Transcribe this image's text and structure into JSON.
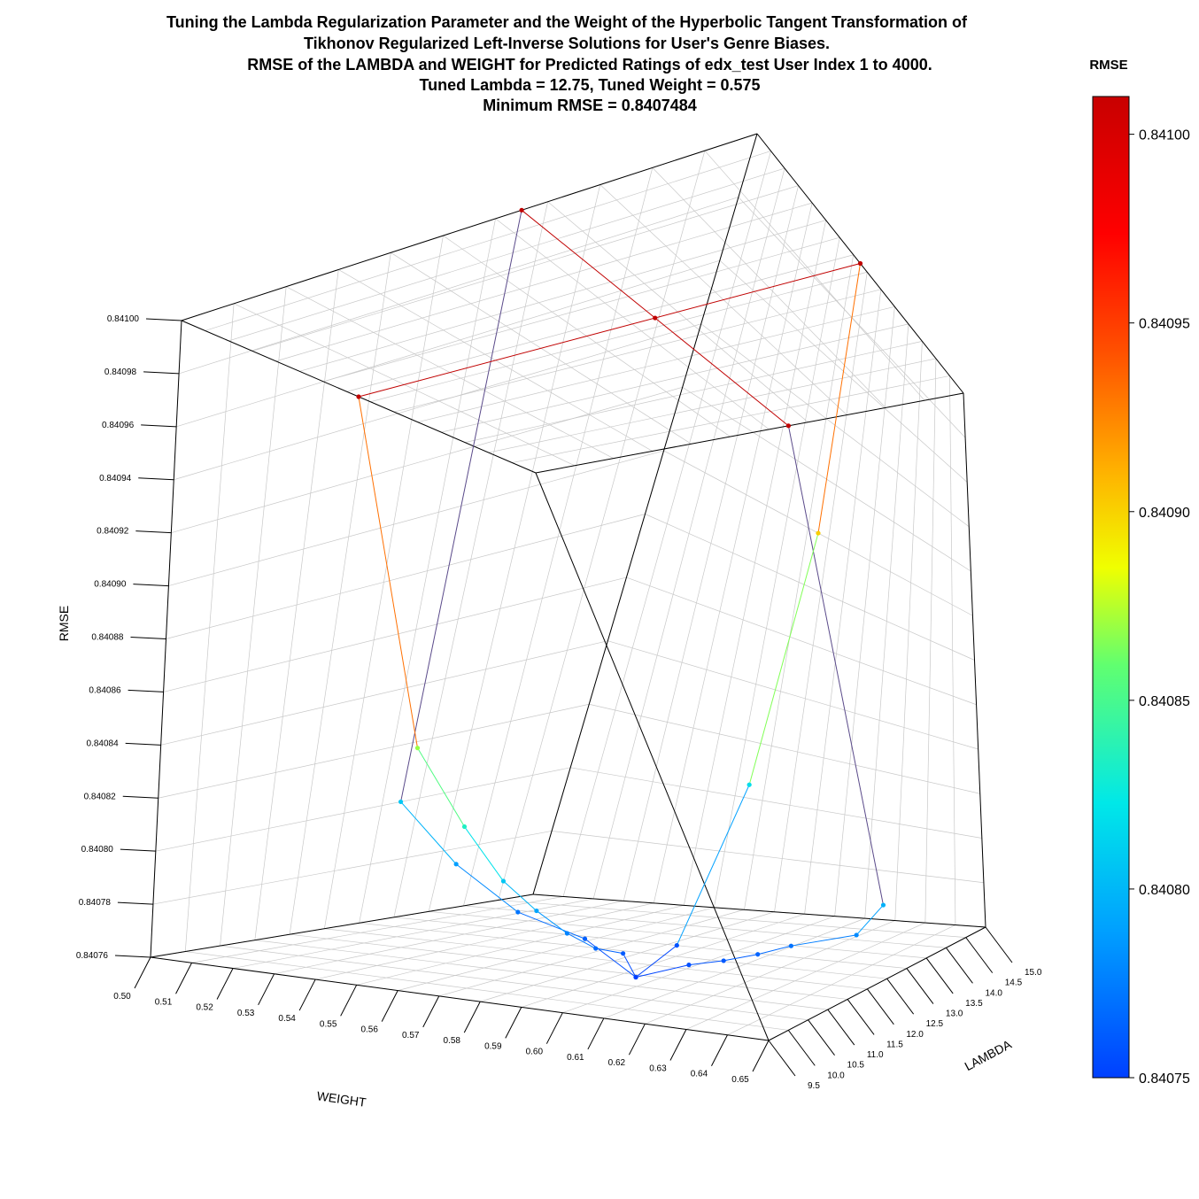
{
  "chart_data": {
    "type": "scatter3d",
    "title_lines": [
      "Tuning the Lambda Regularization Parameter and the Weight of the Hyperbolic Tangent Transformation of",
      "Tikhonov Regularized Left-Inverse Solutions for User's Genre Biases.",
      "RMSE of the LAMBDA and WEIGHT for Predicted Ratings of edx_test User Index 1 to 4000.",
      "Tuned Lambda = 12.75, Tuned Weight = 0.575",
      "Minimum RMSE = 0.8407484"
    ],
    "x_axis": {
      "label": "WEIGHT",
      "range": [
        0.5,
        0.65
      ],
      "ticks": [
        "0.50",
        "0.51",
        "0.52",
        "0.53",
        "0.54",
        "0.55",
        "0.56",
        "0.57",
        "0.58",
        "0.59",
        "0.60",
        "0.61",
        "0.62",
        "0.63",
        "0.64",
        "0.65"
      ]
    },
    "y_axis": {
      "label": "LAMBDA",
      "range": [
        9.5,
        15.0
      ],
      "ticks": [
        "9.5",
        "10.0",
        "10.5",
        "11.0",
        "11.5",
        "12.0",
        "12.5",
        "13.0",
        "13.5",
        "14.0",
        "14.5",
        "15.0"
      ]
    },
    "z_axis": {
      "label": "RMSE",
      "range": [
        0.84076,
        0.841
      ],
      "ticks": [
        "0.84076",
        "0.84078",
        "0.84080",
        "0.84082",
        "0.84084",
        "0.84086",
        "0.84088",
        "0.84090",
        "0.84092",
        "0.84094",
        "0.84096",
        "0.84098",
        "0.84100"
      ]
    },
    "grid": true,
    "colorbar": {
      "title": "RMSE",
      "range": [
        0.84075,
        0.84101
      ],
      "ticks": [
        "0.84075",
        "0.84080",
        "0.84085",
        "0.84090",
        "0.84095",
        "0.84100"
      ],
      "colors": [
        "#0040ff",
        "#00a0ff",
        "#00e8e8",
        "#60ff70",
        "#f0ff00",
        "#ffb000",
        "#ff5000",
        "#ff0000",
        "#c80000"
      ]
    },
    "series": [
      {
        "lambda": 12.75,
        "points": [
          {
            "weight": 0.5,
            "rmse": 0.8408
          },
          {
            "weight": 0.52,
            "rmse": 0.840782
          },
          {
            "weight": 0.54,
            "rmse": 0.840768
          },
          {
            "weight": 0.56,
            "rmse": 0.840761
          },
          {
            "weight": 0.575,
            "rmse": 0.8407484
          },
          {
            "weight": 0.59,
            "rmse": 0.840755
          },
          {
            "weight": 0.6,
            "rmse": 0.840758
          },
          {
            "weight": 0.61,
            "rmse": 0.840762
          },
          {
            "weight": 0.62,
            "rmse": 0.840767
          },
          {
            "weight": 0.64,
            "rmse": 0.840775
          },
          {
            "weight": 0.65,
            "rmse": 0.84079
          }
        ]
      },
      {
        "weight": 0.575,
        "points": [
          {
            "lambda": 9.5,
            "rmse": 0.84086
          },
          {
            "lambda": 10.0,
            "rmse": 0.840825
          },
          {
            "lambda": 10.5,
            "rmse": 0.8408
          },
          {
            "lambda": 11.0,
            "rmse": 0.840785
          },
          {
            "lambda": 11.5,
            "rmse": 0.840773
          },
          {
            "lambda": 12.0,
            "rmse": 0.840764
          },
          {
            "lambda": 12.5,
            "rmse": 0.840759
          },
          {
            "lambda": 12.75,
            "rmse": 0.8407484
          },
          {
            "lambda": 13.5,
            "rmse": 0.840756
          },
          {
            "lambda": 14.5,
            "rmse": 0.84081
          },
          {
            "lambda": 15.0,
            "rmse": 0.8409
          }
        ]
      }
    ],
    "tuned": {
      "lambda": 12.75,
      "weight": 0.575,
      "rmse": 0.8407484
    }
  }
}
